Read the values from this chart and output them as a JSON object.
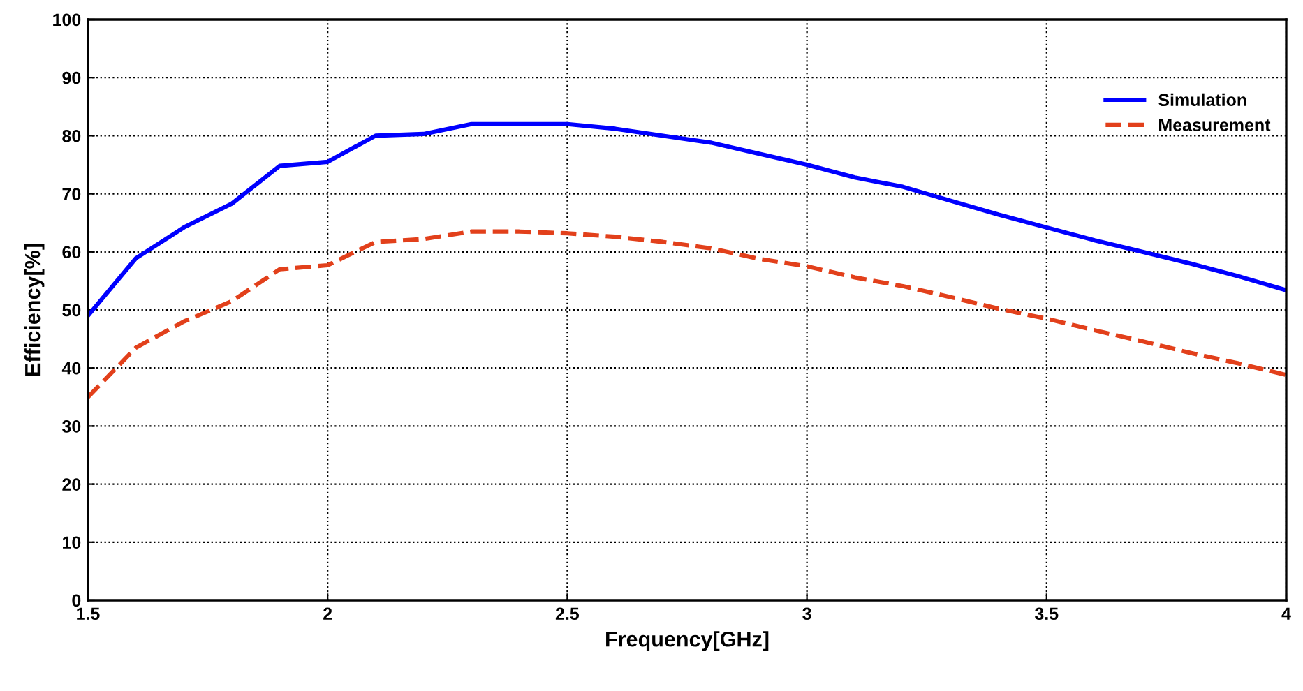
{
  "chart_data": {
    "type": "line",
    "xlabel": "Frequency[GHz]",
    "ylabel": "Efficiency[%]",
    "x": [
      1.5,
      1.6,
      1.7,
      1.8,
      1.9,
      2.0,
      2.1,
      2.2,
      2.3,
      2.4,
      2.5,
      2.6,
      2.7,
      2.8,
      2.9,
      3.0,
      3.1,
      3.2,
      3.3,
      3.4,
      3.5,
      3.6,
      3.7,
      3.8,
      3.9,
      4.0
    ],
    "series": [
      {
        "name": "Simulation",
        "color": "#0000ff",
        "line_style": "solid",
        "values": [
          49,
          58.9,
          64.2,
          68.3,
          74.8,
          75.5,
          80,
          80.3,
          82,
          82,
          82,
          81.2,
          80,
          78.8,
          76.9,
          75,
          72.8,
          71.2,
          68.8,
          66.4,
          64.2,
          62,
          60,
          58,
          55.8,
          53.4
        ]
      },
      {
        "name": "Measurement",
        "color": "#e2401b",
        "line_style": "dashed",
        "values": [
          35,
          43.5,
          48,
          51.5,
          57,
          57.7,
          61.7,
          62.2,
          63.5,
          63.5,
          63.2,
          62.6,
          61.7,
          60.6,
          58.8,
          57.5,
          55.6,
          54.1,
          52.2,
          50.2,
          48.5,
          46.5,
          44.6,
          42.6,
          40.8,
          38.8
        ]
      }
    ],
    "xlim": [
      1.5,
      4
    ],
    "xticks": [
      1.5,
      2,
      2.5,
      3,
      3.5,
      4
    ],
    "ylim": [
      0,
      100
    ],
    "yticks": [
      0,
      10,
      20,
      30,
      40,
      50,
      60,
      70,
      80,
      90,
      100
    ],
    "grid": true,
    "legend": "top right",
    "marker": "none"
  }
}
